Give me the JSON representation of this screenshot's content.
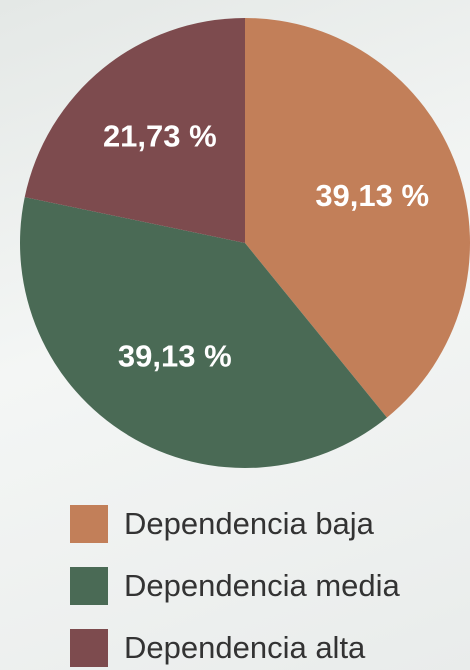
{
  "chart_data": {
    "type": "pie",
    "categories": [
      "Dependencia baja",
      "Dependencia media",
      "Dependencia alta"
    ],
    "values": [
      39.13,
      39.13,
      21.73
    ],
    "value_labels": [
      "39,13 %",
      "39,13 %",
      "21,73 %"
    ],
    "colors": [
      "#c27f59",
      "#4a6a55",
      "#7d4b4e"
    ]
  }
}
